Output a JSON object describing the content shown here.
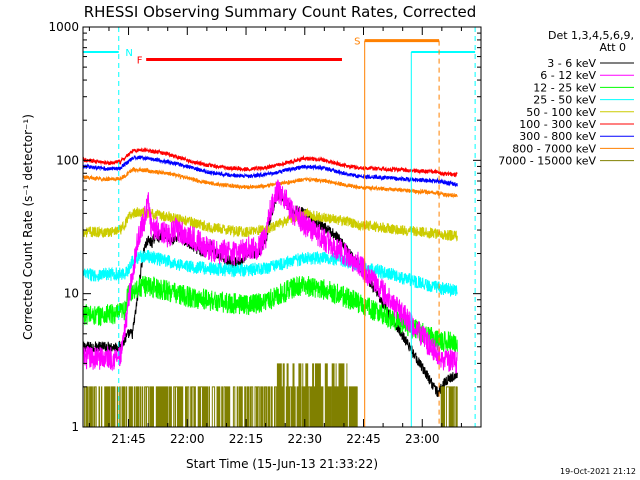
{
  "chart_data": {
    "type": "line",
    "title": "RHESSI Observing Summary Count Rates, Corrected",
    "xlabel": "Start Time (15-Jun-13 21:33:22)",
    "ylabel": "Corrected Count Rate (s⁻¹ detector⁻¹)",
    "scale": "log",
    "x_unit": "minutes of day (UT)",
    "xlim": [
      1293.37,
      1395
    ],
    "ylim": [
      1,
      1000
    ],
    "x_ticks": [
      {
        "value": 1305,
        "label": "21:45"
      },
      {
        "value": 1320,
        "label": "22:00"
      },
      {
        "value": 1335,
        "label": "22:15"
      },
      {
        "value": 1350,
        "label": "22:30"
      },
      {
        "value": 1365,
        "label": "22:45"
      },
      {
        "value": 1380,
        "label": "23:00"
      }
    ],
    "y_ticks": [
      {
        "value": 1,
        "label": "1"
      },
      {
        "value": 10,
        "label": "10"
      },
      {
        "value": 100,
        "label": "100"
      },
      {
        "value": 1000,
        "label": "1000"
      }
    ],
    "legend": {
      "placement": "right",
      "header": [
        "Det 1,3,4,5,6,9,",
        "Att 0"
      ]
    },
    "series": [
      {
        "name": "3 - 6 keV",
        "color": "#000000",
        "noise": 0.04,
        "x": [
          1293.5,
          1303,
          1305,
          1306,
          1307,
          1308,
          1309,
          1310,
          1311,
          1312,
          1313,
          1314,
          1315,
          1316,
          1318,
          1320,
          1322,
          1324,
          1326,
          1328,
          1330,
          1332,
          1334,
          1336,
          1338,
          1340,
          1341,
          1342,
          1343,
          1344,
          1345,
          1346,
          1347,
          1348,
          1350,
          1352,
          1354,
          1356,
          1358,
          1360,
          1362,
          1363.5,
          1384,
          1385,
          1386,
          1389
        ],
        "y": [
          4,
          4,
          5,
          5,
          8,
          14,
          22,
          25,
          24,
          28,
          26,
          29,
          27,
          25,
          27,
          24,
          22,
          20,
          23,
          19,
          18,
          17,
          18,
          20,
          20,
          25,
          35,
          45,
          55,
          55,
          50,
          45,
          40,
          42,
          40,
          36,
          32,
          30,
          27,
          23,
          19,
          17,
          1.8,
          2,
          2.2,
          2.5
        ]
      },
      {
        "name": "6 - 12 keV",
        "color": "#ff00ff",
        "noise": 0.09,
        "x": [
          1293.5,
          1303,
          1304,
          1305,
          1306,
          1307,
          1308,
          1309,
          1310,
          1311,
          1312,
          1313,
          1315,
          1317,
          1319,
          1322,
          1325,
          1328,
          1330,
          1332,
          1334,
          1336,
          1338,
          1340,
          1341,
          1342,
          1343,
          1344,
          1345,
          1346,
          1347,
          1348,
          1350,
          1352,
          1354,
          1356,
          1358,
          1360,
          1362,
          1363.5,
          1384,
          1385,
          1386,
          1389
        ],
        "y": [
          3.3,
          3.3,
          5,
          9,
          14,
          22,
          30,
          35,
          50,
          28,
          32,
          30,
          27,
          30,
          28,
          26,
          22,
          20,
          21,
          20,
          21,
          22,
          22,
          26,
          40,
          50,
          60,
          55,
          52,
          45,
          40,
          38,
          33,
          30,
          27,
          24,
          22,
          20,
          18,
          17,
          3.5,
          3.3,
          3.2,
          3.1
        ]
      },
      {
        "name": "12 - 25 keV",
        "color": "#00ff00",
        "noise": 0.08,
        "x": [
          1293.5,
          1297,
          1300,
          1302,
          1303,
          1304,
          1305,
          1306,
          1307,
          1310,
          1315,
          1320,
          1325,
          1330,
          1335,
          1338,
          1341,
          1344,
          1347,
          1350,
          1353,
          1356,
          1359,
          1362,
          1363.5,
          1384,
          1385,
          1386,
          1389
        ],
        "y": [
          7,
          6.8,
          7,
          7,
          7.2,
          7.5,
          10,
          10.5,
          11,
          11.5,
          10.5,
          9.5,
          9,
          8.5,
          8.3,
          8.5,
          9,
          10,
          11,
          11.5,
          11,
          10.5,
          9.8,
          9,
          8.5,
          4.5,
          4.5,
          4.4,
          4.3
        ]
      },
      {
        "name": "25 - 50 keV",
        "color": "#00ffff",
        "noise": 0.05,
        "x": [
          1293.5,
          1297,
          1300,
          1303,
          1304,
          1305,
          1306,
          1308,
          1310,
          1315,
          1320,
          1325,
          1330,
          1335,
          1340,
          1345,
          1350,
          1355,
          1360,
          1363.5,
          1384,
          1385,
          1386,
          1389
        ],
        "y": [
          14,
          13.8,
          14,
          14,
          14.2,
          15,
          18,
          19,
          19,
          17.5,
          16,
          15.5,
          15,
          15,
          15.5,
          17,
          18.5,
          18.5,
          17.5,
          16.5,
          11,
          11,
          10.8,
          10.5
        ]
      },
      {
        "name": "50 - 100 keV",
        "color": "#cccc00",
        "noise": 0.04,
        "x": [
          1293.5,
          1297,
          1300,
          1303,
          1304,
          1305,
          1306,
          1308,
          1310,
          1315,
          1320,
          1325,
          1330,
          1335,
          1340,
          1343,
          1346,
          1350,
          1355,
          1360,
          1363.5,
          1384,
          1385,
          1386,
          1389
        ],
        "y": [
          29,
          29,
          29,
          30,
          33,
          37,
          40,
          41,
          40,
          38,
          35,
          32,
          30,
          29,
          30,
          33,
          36,
          40,
          37,
          35,
          33,
          28,
          28,
          27.5,
          27
        ]
      },
      {
        "name": "100 - 300 keV",
        "color": "#ff0000",
        "noise": 0.015,
        "x": [
          1293.5,
          1297,
          1300,
          1303,
          1305,
          1306,
          1308,
          1310,
          1315,
          1320,
          1325,
          1330,
          1335,
          1340,
          1345,
          1350,
          1355,
          1360,
          1363.5,
          1384,
          1385,
          1386,
          1389
        ],
        "y": [
          100,
          98,
          95,
          98,
          110,
          118,
          120,
          118,
          112,
          100,
          92,
          88,
          86,
          88,
          95,
          104,
          100,
          92,
          88,
          82,
          80,
          79,
          78
        ]
      },
      {
        "name": "300 - 800 keV",
        "color": "#0000ff",
        "noise": 0.015,
        "x": [
          1293.5,
          1297,
          1300,
          1303,
          1305,
          1306,
          1308,
          1310,
          1315,
          1320,
          1325,
          1330,
          1335,
          1340,
          1345,
          1350,
          1355,
          1360,
          1363.5,
          1384,
          1385,
          1386,
          1389
        ],
        "y": [
          90,
          88,
          86,
          88,
          98,
          104,
          105,
          103,
          98,
          90,
          82,
          78,
          76,
          78,
          84,
          90,
          87,
          80,
          76,
          70,
          69,
          68,
          66
        ]
      },
      {
        "name": "800 - 7000 keV",
        "color": "#ff8000",
        "noise": 0.015,
        "x": [
          1293.5,
          1297,
          1300,
          1303,
          1305,
          1306,
          1308,
          1310,
          1315,
          1320,
          1325,
          1330,
          1335,
          1340,
          1345,
          1350,
          1355,
          1360,
          1363.5,
          1384,
          1385,
          1386,
          1389
        ],
        "y": [
          75,
          73,
          72,
          73,
          80,
          85,
          85,
          83,
          80,
          74,
          68,
          65,
          63,
          64,
          68,
          72,
          70,
          66,
          63,
          57,
          56,
          55,
          54
        ]
      },
      {
        "name": "7000 - 15000 keV",
        "color": "#808000",
        "noise": 0.0,
        "x": [],
        "y": []
      }
    ],
    "flags": [
      {
        "code": "N",
        "color": "#00ffff"
      },
      {
        "code": "F",
        "color": "#ff0000"
      },
      {
        "code": "S",
        "color": "#ff8000"
      }
    ],
    "timestamp": "19-Oct-2021 21:12"
  }
}
